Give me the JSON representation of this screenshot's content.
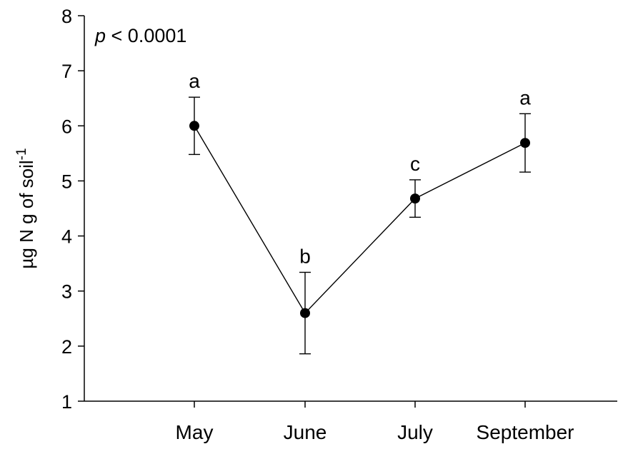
{
  "chart_data": {
    "type": "line",
    "title": "",
    "xlabel": "",
    "ylabel": {
      "main": "µg N g of soil",
      "superscript": "-1"
    },
    "ylim": [
      1,
      8
    ],
    "yticks": [
      1,
      2,
      3,
      4,
      5,
      6,
      7,
      8
    ],
    "categories": [
      "May",
      "June",
      "July",
      "September"
    ],
    "series": [
      {
        "values": [
          6.0,
          2.6,
          4.68,
          5.69
        ],
        "error": [
          0.52,
          0.74,
          0.34,
          0.53
        ],
        "color": "#000000"
      }
    ],
    "significance_letters": [
      "a",
      "b",
      "c",
      "a"
    ],
    "annotation": {
      "italic_part": "p",
      "rest": " < 0.0001"
    },
    "grid": false,
    "legend": "none"
  }
}
